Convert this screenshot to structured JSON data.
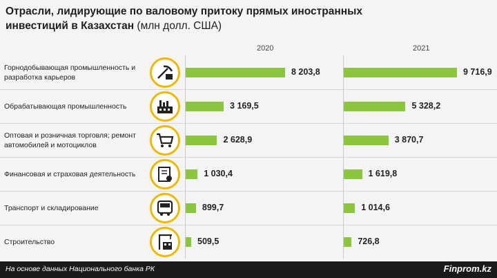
{
  "title": {
    "bold": "Отрасли, лидирующие по валовому притоку прямых иностранных инвестиций в Казахстан",
    "unit": "(млн долл. США)"
  },
  "footer": {
    "source": "На основе данных Национального банка РК",
    "brand": "Finprom.kz"
  },
  "colors": {
    "bar": "#8cc63f",
    "icon_ring": "#f0b800",
    "footer": "#1a1a1a"
  },
  "chart_data": {
    "type": "bar",
    "orientation": "horizontal",
    "categories": [
      "Горнодобывающая промышленность и разработка карьеров",
      "Обрабатывающая промышленность",
      "Оптовая и розничная торговля; ремонт автомобилей и мотоциклов",
      "Финансовая и страховая деятельность",
      "Транспорт и складирование",
      "Строительство"
    ],
    "icons": [
      "mining-icon",
      "factory-icon",
      "shopping-cart-icon",
      "finance-icon",
      "bus-icon",
      "construction-icon"
    ],
    "series": [
      {
        "name": "2020",
        "values": [
          8203.8,
          3169.5,
          2628.9,
          1030.4,
          899.7,
          509.5
        ],
        "labels": [
          "8 203,8",
          "3 169,5",
          "2 628,9",
          "1 030,4",
          "899,7",
          "509,5"
        ]
      },
      {
        "name": "2021",
        "values": [
          9716.9,
          5328.2,
          3870.7,
          1619.8,
          1014.6,
          726.8
        ],
        "labels": [
          "9 716,9",
          "5 328,2",
          "3 870,7",
          "1 619,8",
          "1 014,6",
          "726,8"
        ]
      }
    ]
  }
}
